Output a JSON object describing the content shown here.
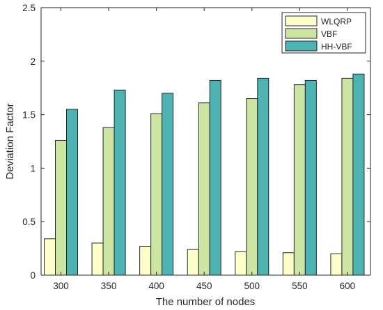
{
  "chart_data": {
    "type": "bar",
    "title": "",
    "xlabel": "The number of nodes",
    "ylabel": "Deviation Factor",
    "categories": [
      "300",
      "350",
      "400",
      "450",
      "500",
      "550",
      "600"
    ],
    "ylim": [
      0,
      2.5
    ],
    "yticks": [
      "0",
      "0.5",
      "1",
      "1.5",
      "2",
      "2.5"
    ],
    "grid": false,
    "legend_position": "top-right",
    "series": [
      {
        "name": "WLQRP",
        "color": "#ffffcc",
        "values": [
          0.34,
          0.3,
          0.27,
          0.24,
          0.22,
          0.21,
          0.2
        ]
      },
      {
        "name": "VBF",
        "color": "#cce5a3",
        "values": [
          1.26,
          1.38,
          1.51,
          1.61,
          1.65,
          1.78,
          1.84
        ]
      },
      {
        "name": "HH-VBF",
        "color": "#4db3b3",
        "values": [
          1.55,
          1.73,
          1.7,
          1.82,
          1.84,
          1.82,
          1.88
        ]
      }
    ]
  }
}
